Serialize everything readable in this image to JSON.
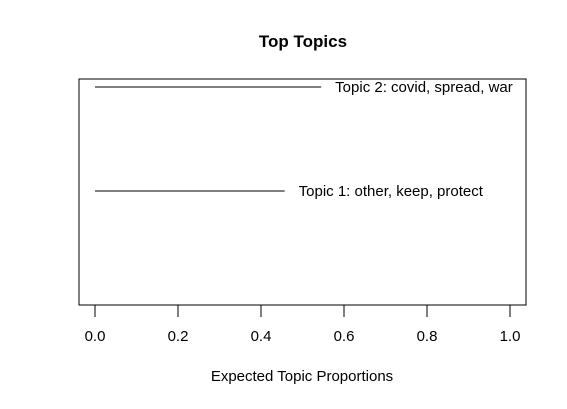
{
  "chart_data": {
    "type": "bar",
    "orientation": "horizontal",
    "title": "Top Topics",
    "xlabel": "Expected Topic Proportions",
    "ylabel": "",
    "xlim": [
      0,
      1
    ],
    "xticks": [
      "0.0",
      "0.2",
      "0.4",
      "0.6",
      "0.8",
      "1.0"
    ],
    "categories": [
      "Topic 1: other, keep, protect",
      "Topic 2: covid, spread, war"
    ],
    "values": [
      0.457,
      0.545
    ],
    "grid": false,
    "legend": "none",
    "colors": {
      "line": "#000000",
      "background": "#ffffff"
    }
  }
}
